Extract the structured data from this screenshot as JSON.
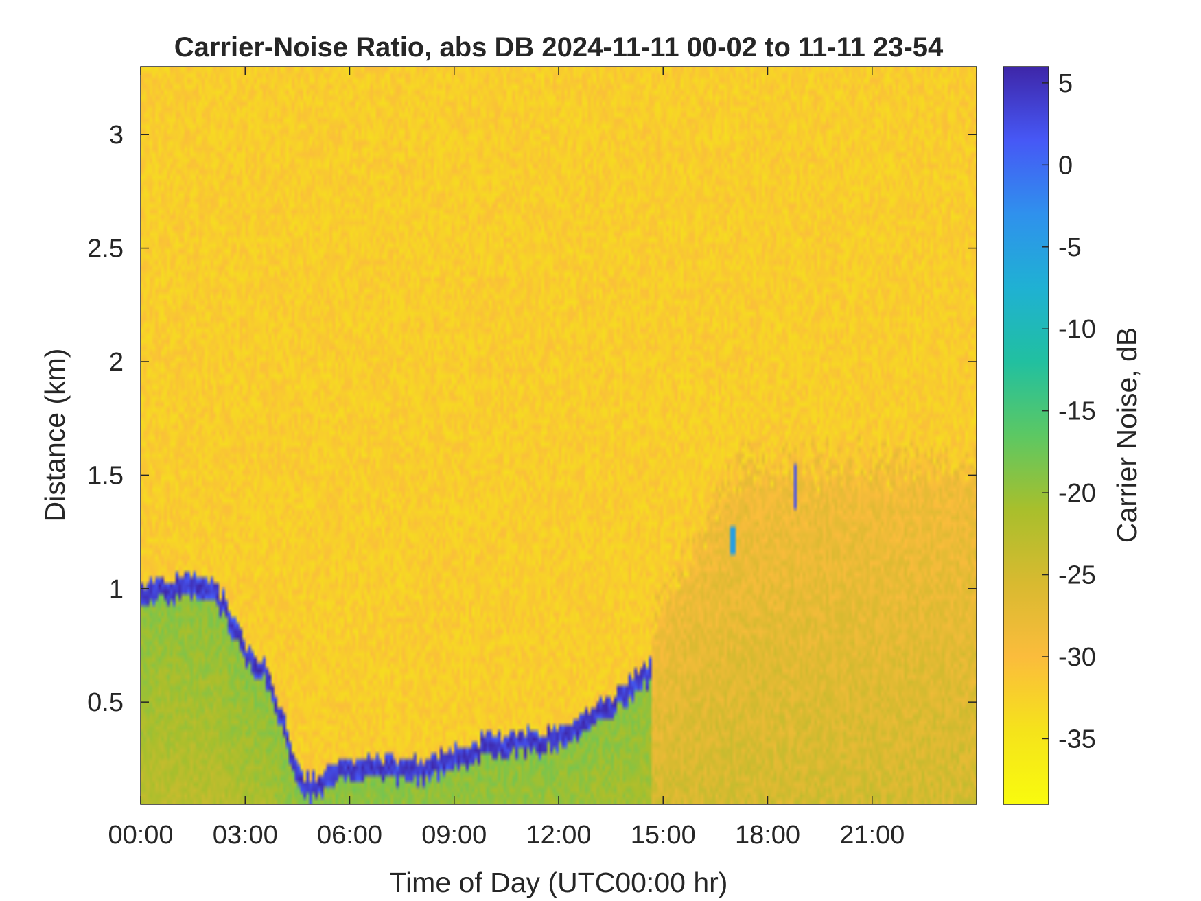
{
  "chart_data": {
    "type": "heatmap",
    "title": "Carrier-Noise Ratio, abs DB 2024-11-11 00-02 to 11-11 23-54",
    "xlabel": "Time of Day (UTC00:00 hr)",
    "ylabel": "Distance (km)",
    "x_ticks": [
      "00:00",
      "03:00",
      "06:00",
      "09:00",
      "12:00",
      "15:00",
      "18:00",
      "21:00"
    ],
    "x_tick_values_hr": [
      0,
      3,
      6,
      9,
      12,
      15,
      18,
      21
    ],
    "xlim_hr": [
      0,
      24
    ],
    "y_ticks": [
      "0.5",
      "1",
      "1.5",
      "2",
      "2.5",
      "3"
    ],
    "y_tick_values_km": [
      0.5,
      1,
      1.5,
      2,
      2.5,
      3
    ],
    "ylim_km": [
      0.05,
      3.3
    ],
    "colorbar": {
      "label": "Carrier Noise, dB",
      "ticks": [
        "5",
        "0",
        "-5",
        "-10",
        "-15",
        "-20",
        "-25",
        "-30",
        "-35"
      ],
      "tick_values": [
        5,
        0,
        -5,
        -10,
        -15,
        -20,
        -25,
        -30,
        -35
      ],
      "range": [
        -39,
        6
      ],
      "colormap": "parula-reversed",
      "colors_high_to_low": [
        "#3e26a8",
        "#4658f6",
        "#2f91ed",
        "#1fb1d3",
        "#21c0a0",
        "#5cc863",
        "#a8bf2c",
        "#d8ba30",
        "#fbbc3c",
        "#f5e31b",
        "#f9fb0e"
      ]
    },
    "background_db": -32,
    "boundary_layer_top": {
      "description_units": "hours vs km",
      "x_hr": [
        0,
        1,
        2,
        2.5,
        3,
        3.5,
        4,
        4.3,
        4.7,
        5.2,
        6,
        7,
        8,
        9,
        10,
        11,
        12,
        13,
        14,
        14.7
      ],
      "y_km": [
        0.97,
        1.0,
        1.0,
        0.9,
        0.7,
        0.65,
        0.45,
        0.25,
        0.13,
        0.14,
        0.22,
        0.2,
        0.19,
        0.25,
        0.31,
        0.32,
        0.35,
        0.43,
        0.55,
        0.64
      ],
      "peak_db": 5
    },
    "mixed_layer_db": -19,
    "evening_residual": {
      "x_hr": [
        15,
        24
      ],
      "top_km": 1.55,
      "db": -25
    },
    "isolated_plumes": [
      {
        "x_hr": 18.8,
        "y_km": [
          1.35,
          1.55
        ],
        "db": 2
      },
      {
        "x_hr": 17.0,
        "y_km": [
          1.15,
          1.28
        ],
        "db": -5
      }
    ]
  }
}
